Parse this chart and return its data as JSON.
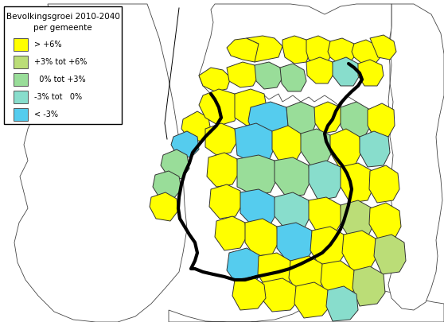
{
  "title_line1": "Bevolkingsgroei 2010-2040",
  "title_line2": "per gemeente",
  "legend_labels": [
    "> +6%",
    "+3% tot +6%",
    "  0% tot +3%",
    "-3% tot   0%",
    "< -3%"
  ],
  "legend_colors": [
    "#FFFF00",
    "#BBDD77",
    "#99DD99",
    "#88DDCC",
    "#55CCEE"
  ],
  "background_color": "#FFFFFF",
  "figsize": [
    5.58,
    4.05
  ],
  "dpi": 100,
  "Y": "#FFFF00",
  "LG": "#BBDD77",
  "PG": "#99DD99",
  "CG": "#88DDCC",
  "LB": "#55CCEE"
}
